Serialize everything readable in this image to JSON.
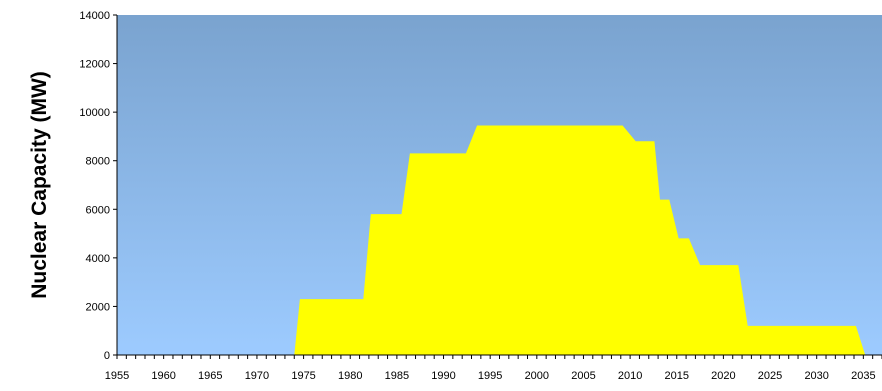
{
  "chart_data": {
    "type": "area",
    "title": "",
    "xlabel": "",
    "ylabel": "Nuclear Capacity (MW)",
    "xlim": [
      1955,
      2037
    ],
    "ylim": [
      0,
      14000
    ],
    "y_ticks": [
      0,
      2000,
      4000,
      6000,
      8000,
      10000,
      12000,
      14000
    ],
    "x_ticks": [
      1955,
      1960,
      1965,
      1970,
      1975,
      1980,
      1985,
      1990,
      1995,
      2000,
      2005,
      2010,
      2015,
      2020,
      2025,
      2030,
      2035
    ],
    "grid": false,
    "legend": "none",
    "colors": {
      "fill": "#ffff00",
      "background_top": "#7aa3cf",
      "background_bottom": "#9dcbff",
      "axis": "#000000"
    },
    "series": [
      {
        "x": [
          1974,
          1974.6,
          1981.4,
          1982.2,
          1985.5,
          1986.4,
          1992.4,
          1993.6,
          2009.2,
          2010.6,
          2012.6,
          2013.2,
          2014.2,
          2015.2,
          2016.3,
          2017.5,
          2021.6,
          2022.6,
          2034.2,
          2035.2
        ],
        "y": [
          0,
          2300,
          2300,
          5800,
          5800,
          8300,
          8300,
          9450,
          9450,
          8800,
          8800,
          6400,
          6400,
          4800,
          4800,
          3700,
          3700,
          1200,
          1200,
          0
        ]
      }
    ]
  }
}
